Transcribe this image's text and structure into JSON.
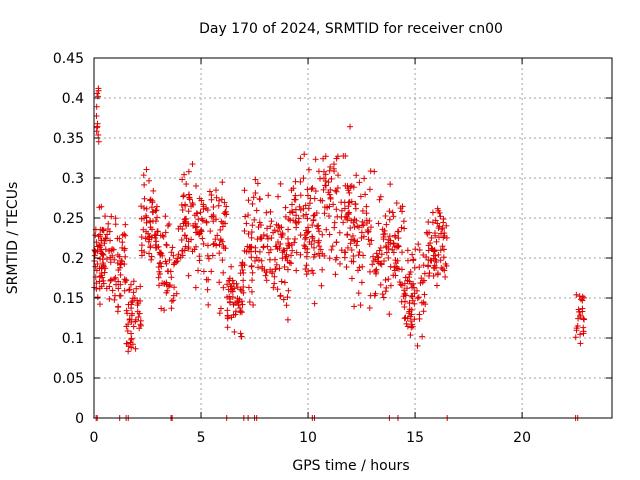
{
  "chart_data": {
    "type": "scatter",
    "title": "Day 170 of 2024, SRMTID for receiver cn00",
    "xlabel": "GPS time / hours",
    "ylabel": "SRMTID / TECUs",
    "xlim": [
      0,
      24.2
    ],
    "ylim": [
      0,
      0.45
    ],
    "grid": true,
    "x_ticks": [
      0,
      5,
      10,
      15,
      20
    ],
    "y_ticks": [
      0,
      0.05,
      0.1,
      0.15,
      0.2,
      0.25,
      0.3,
      0.35,
      0.4,
      0.45
    ],
    "x_tick_labels": [
      "0",
      "5",
      "10",
      "15",
      "20"
    ],
    "y_tick_labels": [
      "0",
      "0.05",
      "0.1",
      "0.15",
      "0.2",
      "0.25",
      "0.3",
      "0.35",
      "0.4",
      "0.45"
    ],
    "marker": "+",
    "color": "#e00000",
    "series": [
      {
        "name": "SRMTID",
        "clusters": [
          {
            "x_range": [
              0.0,
              0.5
            ],
            "y_center": 0.2,
            "spread": 0.05,
            "count": 60
          },
          {
            "x_range": [
              0.1,
              0.3
            ],
            "y_center": 0.38,
            "spread": 0.05,
            "count": 12
          },
          {
            "x_range": [
              0.5,
              1.5
            ],
            "y_center": 0.19,
            "spread": 0.06,
            "count": 70
          },
          {
            "x_range": [
              1.5,
              2.2
            ],
            "y_center": 0.13,
            "spread": 0.04,
            "count": 50
          },
          {
            "x_range": [
              2.2,
              3.0
            ],
            "y_center": 0.24,
            "spread": 0.06,
            "count": 60
          },
          {
            "x_range": [
              3.0,
              4.0
            ],
            "y_center": 0.19,
            "spread": 0.05,
            "count": 60
          },
          {
            "x_range": [
              4.0,
              5.2
            ],
            "y_center": 0.24,
            "spread": 0.07,
            "count": 80
          },
          {
            "x_range": [
              5.2,
              6.2
            ],
            "y_center": 0.22,
            "spread": 0.08,
            "count": 60
          },
          {
            "x_range": [
              6.2,
              7.0
            ],
            "y_center": 0.15,
            "spread": 0.04,
            "count": 60
          },
          {
            "x_range": [
              7.0,
              8.2
            ],
            "y_center": 0.22,
            "spread": 0.06,
            "count": 70
          },
          {
            "x_range": [
              8.2,
              9.2
            ],
            "y_center": 0.21,
            "spread": 0.07,
            "count": 70
          },
          {
            "x_range": [
              9.2,
              10.5
            ],
            "y_center": 0.24,
            "spread": 0.07,
            "count": 90
          },
          {
            "x_range": [
              10.5,
              12.0
            ],
            "y_center": 0.26,
            "spread": 0.08,
            "count": 100
          },
          {
            "x_range": [
              12.0,
              13.5
            ],
            "y_center": 0.22,
            "spread": 0.07,
            "count": 90
          },
          {
            "x_range": [
              13.5,
              14.5
            ],
            "y_center": 0.21,
            "spread": 0.07,
            "count": 70
          },
          {
            "x_range": [
              14.5,
              15.5
            ],
            "y_center": 0.16,
            "spread": 0.05,
            "count": 70
          },
          {
            "x_range": [
              15.5,
              16.5
            ],
            "y_center": 0.22,
            "spread": 0.05,
            "count": 70
          },
          {
            "x_range": [
              22.5,
              22.9
            ],
            "y_center": 0.13,
            "spread": 0.03,
            "count": 25
          }
        ],
        "zero_points_x": [
          0.1,
          0.15,
          1.2,
          1.5,
          1.6,
          3.6,
          3.65,
          6.2,
          7.0,
          7.2,
          7.5,
          7.6,
          10.2,
          10.3,
          13.8,
          14.2,
          16.5,
          22.5,
          22.6
        ]
      }
    ]
  }
}
